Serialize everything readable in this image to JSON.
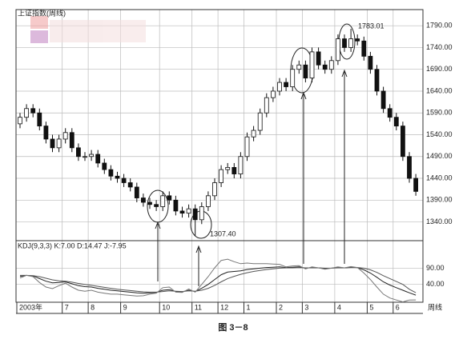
{
  "chart_data": [
    {
      "type": "candlestick",
      "title": "上证指数(周线)",
      "categories": [
        "2003年",
        null,
        null,
        null,
        null,
        null,
        null,
        "7",
        null,
        null,
        null,
        "8",
        null,
        null,
        null,
        null,
        "9",
        null,
        null,
        null,
        null,
        null,
        "10",
        null,
        null,
        null,
        null,
        "11",
        null,
        null,
        null,
        "12",
        null,
        null,
        null,
        "1",
        null,
        null,
        null,
        null,
        "2",
        null,
        null,
        null,
        "3",
        null,
        null,
        null,
        null,
        "4",
        null,
        null,
        null,
        null,
        "5",
        null,
        null,
        null,
        "6",
        null,
        null,
        null
      ],
      "xlabel": "周线",
      "open": [
        1565,
        1580,
        1600,
        1590,
        1560,
        1530,
        1510,
        1530,
        1545,
        1510,
        1490,
        1490,
        1495,
        1475,
        1460,
        1445,
        1440,
        1430,
        1420,
        1395,
        1385,
        1380,
        1375,
        1400,
        1390,
        1365,
        1360,
        1370,
        1345,
        1375,
        1400,
        1430,
        1460,
        1465,
        1450,
        1490,
        1535,
        1550,
        1590,
        1625,
        1640,
        1660,
        1650,
        1690,
        1700,
        1670,
        1730,
        1700,
        1690,
        1710,
        1760,
        1740,
        1760,
        1755,
        1720,
        1690,
        1640,
        1600,
        1580,
        1560,
        1490,
        1440
      ],
      "high": [
        1590,
        1610,
        1610,
        1600,
        1570,
        1540,
        1540,
        1555,
        1555,
        1520,
        1500,
        1505,
        1505,
        1485,
        1470,
        1455,
        1450,
        1440,
        1430,
        1405,
        1395,
        1390,
        1410,
        1410,
        1400,
        1375,
        1380,
        1380,
        1385,
        1410,
        1440,
        1470,
        1475,
        1475,
        1500,
        1545,
        1560,
        1600,
        1635,
        1650,
        1670,
        1670,
        1700,
        1710,
        1710,
        1740,
        1740,
        1710,
        1720,
        1770,
        1770,
        1783.01,
        1770,
        1765,
        1730,
        1700,
        1650,
        1610,
        1590,
        1570,
        1500,
        1450
      ],
      "low": [
        1555,
        1570,
        1580,
        1550,
        1520,
        1500,
        1500,
        1520,
        1500,
        1480,
        1480,
        1480,
        1465,
        1450,
        1435,
        1430,
        1420,
        1410,
        1385,
        1375,
        1370,
        1365,
        1365,
        1380,
        1355,
        1350,
        1350,
        1307.4,
        1335,
        1365,
        1390,
        1420,
        1450,
        1440,
        1440,
        1480,
        1525,
        1540,
        1580,
        1615,
        1630,
        1640,
        1640,
        1680,
        1660,
        1660,
        1690,
        1680,
        1680,
        1700,
        1730,
        1730,
        1745,
        1710,
        1680,
        1630,
        1590,
        1570,
        1550,
        1480,
        1430,
        1400
      ],
      "close": [
        1580,
        1600,
        1590,
        1560,
        1530,
        1510,
        1530,
        1545,
        1510,
        1490,
        1490,
        1495,
        1475,
        1460,
        1445,
        1440,
        1430,
        1420,
        1395,
        1385,
        1380,
        1375,
        1400,
        1390,
        1365,
        1360,
        1370,
        1345,
        1375,
        1400,
        1430,
        1460,
        1465,
        1450,
        1490,
        1535,
        1550,
        1590,
        1625,
        1640,
        1660,
        1650,
        1690,
        1700,
        1670,
        1730,
        1700,
        1690,
        1710,
        1760,
        1740,
        1760,
        1755,
        1720,
        1690,
        1640,
        1600,
        1580,
        1560,
        1490,
        1440,
        1410
      ],
      "up_color": "#ffffff",
      "down_color": "#111111",
      "ylim": [
        1297,
        1827
      ],
      "yticks": [
        {
          "value": 1340,
          "label": "1340.00"
        },
        {
          "value": 1390,
          "label": "1390.00"
        },
        {
          "value": 1440,
          "label": "1440.00"
        },
        {
          "value": 1490,
          "label": "1490.00"
        },
        {
          "value": 1540,
          "label": "1540.00"
        },
        {
          "value": 1590,
          "label": "1590.00"
        },
        {
          "value": 1640,
          "label": "1640.00"
        },
        {
          "value": 1690,
          "label": "1690.00"
        },
        {
          "value": 1740,
          "label": "1740.00"
        },
        {
          "value": 1790,
          "label": "1790.00"
        }
      ],
      "grid": true,
      "annotations": [
        "1783.01",
        "1307.40"
      ]
    },
    {
      "type": "line",
      "title": "KDJ(9,3,3) K:7.00 D:14.47 J:-7.95",
      "series": [
        {
          "name": "K",
          "color": "#222222",
          "values": [
            65,
            68,
            66,
            58,
            50,
            45,
            46,
            48,
            42,
            36,
            33,
            32,
            28,
            25,
            22,
            20,
            18,
            16,
            14,
            13,
            14,
            15,
            22,
            24,
            18,
            17,
            22,
            18,
            28,
            40,
            55,
            70,
            78,
            80,
            82,
            86,
            88,
            90,
            92,
            93,
            94,
            92,
            93,
            94,
            90,
            92,
            91,
            89,
            90,
            92,
            91,
            93,
            92,
            85,
            75,
            62,
            48,
            38,
            30,
            22,
            14,
            7
          ]
        },
        {
          "name": "D",
          "color": "#555555",
          "values": [
            68,
            68,
            67,
            64,
            59,
            54,
            51,
            50,
            47,
            43,
            40,
            37,
            34,
            31,
            28,
            25,
            23,
            21,
            19,
            17,
            16,
            16,
            18,
            20,
            19,
            18,
            20,
            19,
            22,
            28,
            37,
            48,
            58,
            65,
            71,
            76,
            80,
            83,
            86,
            88,
            90,
            91,
            91,
            92,
            91,
            91,
            91,
            90,
            90,
            91,
            91,
            92,
            92,
            90,
            85,
            77,
            67,
            58,
            49,
            40,
            25,
            14.47
          ]
        },
        {
          "name": "J",
          "color": "#777777",
          "values": [
            60,
            68,
            64,
            46,
            32,
            27,
            36,
            44,
            32,
            22,
            19,
            22,
            16,
            13,
            10,
            10,
            8,
            6,
            4,
            5,
            10,
            13,
            30,
            32,
            16,
            15,
            26,
            16,
            40,
            64,
            91,
            114,
            118,
            110,
            104,
            106,
            104,
            104,
            104,
            103,
            102,
            94,
            97,
            98,
            88,
            94,
            91,
            87,
            90,
            94,
            91,
            95,
            92,
            75,
            55,
            32,
            10,
            -2,
            -8,
            -14,
            -8,
            -7.95
          ]
        }
      ],
      "ylim": [
        -15,
        175
      ],
      "yticks": [
        {
          "value": 40,
          "label": "40.00"
        },
        {
          "value": 90,
          "label": "90.00"
        }
      ],
      "grid": true
    }
  ],
  "caption": "图 3－8"
}
